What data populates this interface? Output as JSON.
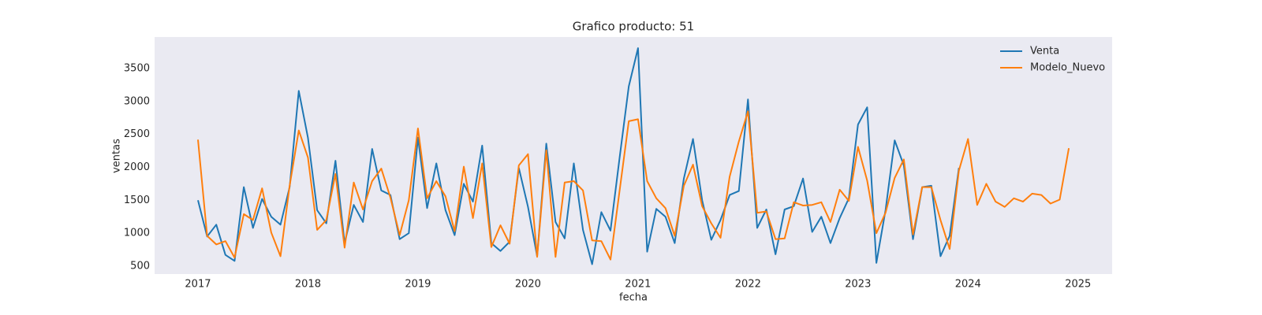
{
  "chart_data": {
    "type": "line",
    "title": "Grafico producto: 51",
    "xlabel": "fecha",
    "ylabel": "ventas",
    "x": [
      "2017-01",
      "2017-02",
      "2017-03",
      "2017-04",
      "2017-05",
      "2017-06",
      "2017-07",
      "2017-08",
      "2017-09",
      "2017-10",
      "2017-11",
      "2017-12",
      "2018-01",
      "2018-02",
      "2018-03",
      "2018-04",
      "2018-05",
      "2018-06",
      "2018-07",
      "2018-08",
      "2018-09",
      "2018-10",
      "2018-11",
      "2018-12",
      "2019-01",
      "2019-02",
      "2019-03",
      "2019-04",
      "2019-05",
      "2019-06",
      "2019-07",
      "2019-08",
      "2019-09",
      "2019-10",
      "2019-11",
      "2019-12",
      "2020-01",
      "2020-02",
      "2020-03",
      "2020-04",
      "2020-05",
      "2020-06",
      "2020-07",
      "2020-08",
      "2020-09",
      "2020-10",
      "2020-11",
      "2020-12",
      "2021-01",
      "2021-02",
      "2021-03",
      "2021-04",
      "2021-05",
      "2021-06",
      "2021-07",
      "2021-08",
      "2021-09",
      "2021-10",
      "2021-11",
      "2021-12",
      "2022-01",
      "2022-02",
      "2022-03",
      "2022-04",
      "2022-05",
      "2022-06",
      "2022-07",
      "2022-08",
      "2022-09",
      "2022-10",
      "2022-11",
      "2022-12",
      "2023-01",
      "2023-02",
      "2023-03",
      "2023-04",
      "2023-05",
      "2023-06",
      "2023-07",
      "2023-08",
      "2023-09",
      "2023-10",
      "2023-11",
      "2023-12",
      "2024-01",
      "2024-02",
      "2024-03",
      "2024-04",
      "2024-05",
      "2024-06",
      "2024-07",
      "2024-08",
      "2024-09",
      "2024-10",
      "2024-11",
      "2024-12"
    ],
    "series": [
      {
        "name": "Venta",
        "color": "#1f77b4",
        "values": [
          1500,
          950,
          1130,
          670,
          580,
          1700,
          1080,
          1520,
          1250,
          1130,
          1700,
          3160,
          2450,
          1350,
          1150,
          2100,
          850,
          1430,
          1170,
          2280,
          1650,
          1580,
          910,
          1000,
          2450,
          1380,
          2060,
          1350,
          970,
          1750,
          1480,
          2330,
          850,
          730,
          870,
          1990,
          1400,
          650,
          2360,
          1170,
          920,
          2060,
          1050,
          530,
          1320,
          1040,
          2150,
          3230,
          3810,
          720,
          1370,
          1250,
          850,
          1830,
          2430,
          1500,
          900,
          1200,
          1580,
          1640,
          3030,
          1080,
          1360,
          680,
          1360,
          1410,
          1830,
          1020,
          1250,
          850,
          1230,
          1530,
          2650,
          2910,
          550,
          1350,
          2410,
          2030,
          910,
          1700,
          1720,
          650,
          960,
          1990,
          null,
          null,
          null,
          null,
          null,
          null,
          null,
          null,
          null,
          null,
          null,
          null
        ]
      },
      {
        "name": "Modelo_Nuevo",
        "color": "#ff7f0e",
        "values": [
          2420,
          960,
          830,
          880,
          630,
          1290,
          1200,
          1680,
          1010,
          650,
          1720,
          2560,
          2150,
          1050,
          1200,
          1900,
          780,
          1770,
          1360,
          1790,
          1980,
          1540,
          970,
          1500,
          2590,
          1530,
          1790,
          1560,
          1030,
          2010,
          1230,
          2060,
          790,
          1120,
          840,
          2030,
          2200,
          640,
          2260,
          640,
          1770,
          1790,
          1650,
          890,
          880,
          600,
          1650,
          2700,
          2730,
          1790,
          1530,
          1380,
          960,
          1720,
          2040,
          1410,
          1150,
          930,
          1860,
          2390,
          2850,
          1310,
          1330,
          910,
          920,
          1470,
          1420,
          1430,
          1470,
          1170,
          1660,
          1490,
          2310,
          1800,
          1000,
          1310,
          1840,
          2120,
          980,
          1700,
          1700,
          1200,
          760,
          1950,
          2430,
          1430,
          1750,
          1480,
          1400,
          1530,
          1480,
          1600,
          1580,
          1450,
          1510,
          2290
        ]
      }
    ],
    "xlim": [
      2016.606,
      2025.31
    ],
    "xticks": [
      2017,
      2018,
      2019,
      2020,
      2021,
      2022,
      2023,
      2024,
      2025
    ],
    "ylim": [
      380,
      3978
    ],
    "yticks": [
      500,
      1000,
      1500,
      2000,
      2500,
      3000,
      3500
    ],
    "legend": "upper right",
    "background": "#eaeaf2"
  }
}
